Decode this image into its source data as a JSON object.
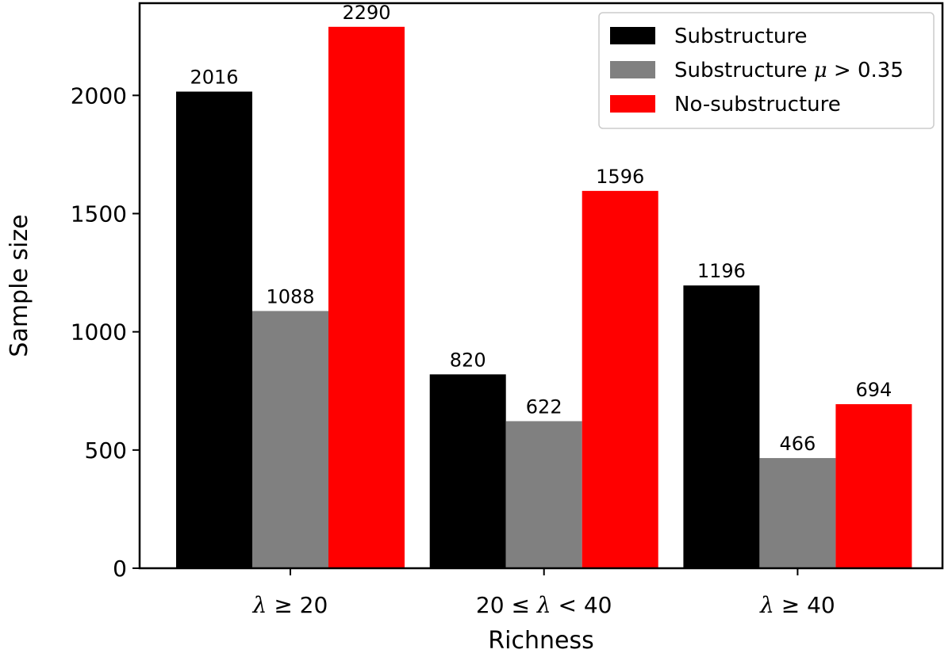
{
  "chart_data": {
    "type": "bar",
    "xlabel": "Richness",
    "ylabel": "Sample size",
    "categories": [
      {
        "id": "lambda-ge-20",
        "parts": [
          {
            "t": "λ",
            "math": true
          },
          {
            "t": " ≥ 20"
          }
        ]
      },
      {
        "id": "lambda-20-40",
        "parts": [
          {
            "t": "20 ≤ "
          },
          {
            "t": "λ",
            "math": true
          },
          {
            "t": " < 40"
          }
        ]
      },
      {
        "id": "lambda-ge-40",
        "parts": [
          {
            "t": "λ",
            "math": true
          },
          {
            "t": " ≥ 40"
          }
        ]
      }
    ],
    "series": [
      {
        "name": "Substructure",
        "name_parts": [
          {
            "t": "Substructure"
          }
        ],
        "color": "#000000",
        "values": [
          2016,
          820,
          1196
        ]
      },
      {
        "name": "Substructure μ > 0.35",
        "name_parts": [
          {
            "t": "Substructure "
          },
          {
            "t": "μ",
            "math": true
          },
          {
            "t": " > 0.35"
          }
        ],
        "color": "#808080",
        "values": [
          1088,
          622,
          466
        ]
      },
      {
        "name": "No-substructure",
        "name_parts": [
          {
            "t": "No-substructure"
          }
        ],
        "color": "#ff0000",
        "values": [
          2290,
          1596,
          694
        ]
      }
    ],
    "ylim": [
      0,
      2390
    ],
    "yticks": [
      0,
      500,
      1000,
      1500,
      2000
    ],
    "grid": false,
    "legend_position": "top-right"
  }
}
